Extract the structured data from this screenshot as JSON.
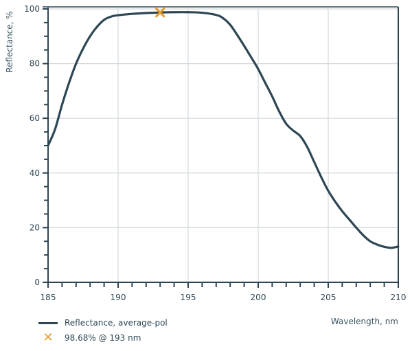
{
  "chart_data": {
    "type": "line",
    "title": "",
    "xlabel": "Wavelength, nm",
    "ylabel": "Reflectance, %",
    "xlim": [
      185,
      210
    ],
    "ylim": [
      0,
      100
    ],
    "x_ticks": [
      185,
      190,
      195,
      200,
      205,
      210
    ],
    "y_ticks": [
      0,
      20,
      40,
      60,
      80,
      100
    ],
    "x_minor_step": 1,
    "y_minor_step": 5,
    "grid": true,
    "legend_position": "bottom-left",
    "series": [
      {
        "name": "Reflectance, average-pol",
        "color": "#2d4654",
        "x": [
          185,
          185.5,
          186,
          186.5,
          187,
          187.5,
          188,
          188.5,
          189,
          189.5,
          190,
          191,
          192,
          193,
          194,
          195,
          196,
          197,
          197.5,
          198,
          198.5,
          199,
          199.5,
          200,
          200.5,
          201,
          201.5,
          202,
          202.5,
          203,
          203.5,
          204,
          204.5,
          205,
          205.5,
          206,
          206.5,
          207,
          207.5,
          208,
          208.5,
          209,
          209.5,
          210
        ],
        "y": [
          50,
          56,
          65,
          73,
          80,
          85.5,
          90,
          93.5,
          96,
          97.2,
          97.7,
          98.2,
          98.5,
          98.68,
          98.8,
          98.8,
          98.6,
          97.8,
          96.6,
          94.2,
          90.5,
          86.5,
          82.3,
          78,
          73,
          68,
          62.5,
          58,
          55.5,
          53.5,
          49.5,
          44,
          38.5,
          33.5,
          29.5,
          26,
          23,
          20,
          17.2,
          15,
          13.8,
          13,
          12.6,
          13.1
        ]
      }
    ],
    "annotations": [
      {
        "type": "marker",
        "marker": "x",
        "color": "#e69c30",
        "x": 193,
        "y": 98.68,
        "label": "98.68% @ 193 nm"
      }
    ]
  },
  "legend": {
    "items": [
      {
        "label": "Reflectance, average-pol",
        "type": "line"
      },
      {
        "label": "98.68% @ 193 nm",
        "type": "x-marker"
      }
    ]
  }
}
